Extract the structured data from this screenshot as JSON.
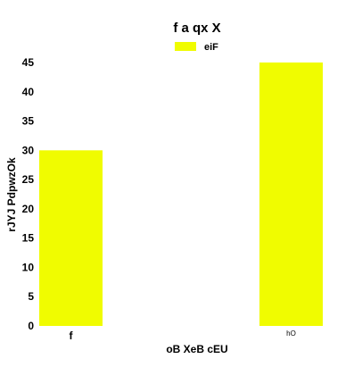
{
  "chart_data": {
    "type": "bar",
    "title": "f a qx  X",
    "xlabel": "oB XeB cEU",
    "ylabel": "rJYJ PdpwzOk",
    "categories": [
      "f",
      "hO"
    ],
    "series": [
      {
        "name": "eiF",
        "values": [
          30,
          45
        ],
        "color": "#f0fc00"
      }
    ],
    "ylim": [
      0,
      45
    ],
    "yticks": [
      0,
      5,
      10,
      15,
      20,
      25,
      30,
      35,
      40,
      45
    ],
    "grid": false,
    "legend": "top-center"
  }
}
